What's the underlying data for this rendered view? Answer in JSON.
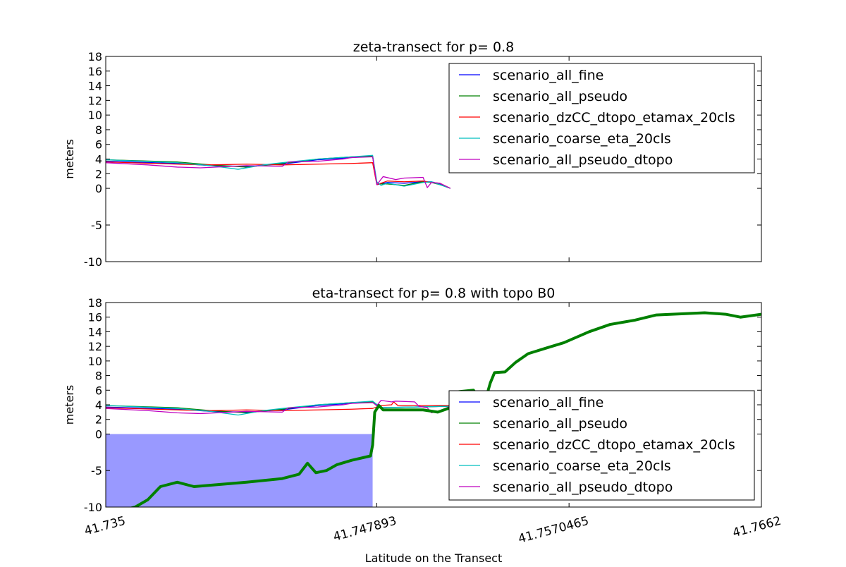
{
  "chart_data": [
    {
      "type": "line",
      "title": "zeta-transect for p= 0.8",
      "xlabel": "",
      "ylabel": "meters",
      "xlim": [
        41.735,
        41.7662
      ],
      "ylim": [
        -10,
        18
      ],
      "yticks": [
        "-10",
        "-5",
        "0",
        "2",
        "4",
        "6",
        "8",
        "10",
        "12",
        "14",
        "16",
        "18"
      ],
      "legend_placement": "top-right",
      "series": [
        {
          "name": "scenario_all_fine",
          "color": "#0000ff",
          "points": [
            [
              41.735,
              3.7
            ],
            [
              41.7384,
              3.4
            ],
            [
              41.74,
              3.1
            ],
            [
              41.7417,
              3.0
            ],
            [
              41.7434,
              3.3
            ],
            [
              41.7451,
              3.9
            ],
            [
              41.7467,
              4.2
            ],
            [
              41.7477,
              4.4
            ],
            [
              41.7479,
              0.5
            ],
            [
              41.7484,
              0.8
            ],
            [
              41.7492,
              0.7
            ],
            [
              41.7501,
              0.9
            ],
            [
              41.7505,
              0.9
            ],
            [
              41.7509,
              0.6
            ],
            [
              41.7514,
              0.0
            ]
          ]
        },
        {
          "name": "scenario_all_pseudo",
          "color": "#008000",
          "points": [
            [
              41.735,
              3.9
            ],
            [
              41.7384,
              3.6
            ],
            [
              41.74,
              3.2
            ],
            [
              41.7417,
              2.9
            ],
            [
              41.7434,
              3.4
            ],
            [
              41.7451,
              4.0
            ],
            [
              41.7467,
              4.3
            ],
            [
              41.7477,
              4.4
            ],
            [
              41.7479,
              0.6
            ],
            [
              41.7484,
              0.6
            ],
            [
              41.7492,
              0.4
            ],
            [
              41.7501,
              0.9
            ],
            [
              41.7505,
              0.8
            ],
            [
              41.7509,
              0.5
            ],
            [
              41.7514,
              0.0
            ]
          ]
        },
        {
          "name": "scenario_dzCC_dtopo_etamax_20cls",
          "color": "#ff0000",
          "points": [
            [
              41.735,
              3.6
            ],
            [
              41.7384,
              3.3
            ],
            [
              41.74,
              3.2
            ],
            [
              41.7417,
              3.3
            ],
            [
              41.7434,
              3.2
            ],
            [
              41.7451,
              3.3
            ],
            [
              41.7467,
              3.4
            ],
            [
              41.7477,
              3.5
            ],
            [
              41.7479,
              0.5
            ],
            [
              41.7484,
              1.0
            ],
            [
              41.7492,
              0.9
            ],
            [
              41.7501,
              1.0
            ],
            [
              41.7505,
              0.8
            ],
            [
              41.7509,
              0.7
            ],
            [
              41.7514,
              0.0
            ]
          ]
        },
        {
          "name": "scenario_coarse_eta_20cls",
          "color": "#00bfbf",
          "points": [
            [
              41.735,
              3.9
            ],
            [
              41.7384,
              3.5
            ],
            [
              41.74,
              3.1
            ],
            [
              41.7413,
              2.6
            ],
            [
              41.7425,
              3.2
            ],
            [
              41.7434,
              3.5
            ],
            [
              41.7451,
              4.0
            ],
            [
              41.7467,
              4.3
            ],
            [
              41.7477,
              4.5
            ],
            [
              41.7479,
              0.9
            ],
            [
              41.7481,
              0.4
            ],
            [
              41.7484,
              0.7
            ],
            [
              41.7492,
              0.3
            ],
            [
              41.7501,
              0.8
            ],
            [
              41.7505,
              0.9
            ],
            [
              41.7509,
              0.5
            ],
            [
              41.7514,
              0.0
            ]
          ]
        },
        {
          "name": "scenario_all_pseudo_dtopo",
          "color": "#bf00bf",
          "points": [
            [
              41.735,
              3.5
            ],
            [
              41.737,
              3.2
            ],
            [
              41.7384,
              2.9
            ],
            [
              41.7395,
              2.8
            ],
            [
              41.7417,
              3.1
            ],
            [
              41.7434,
              3.0
            ],
            [
              41.7437,
              3.6
            ],
            [
              41.7451,
              3.7
            ],
            [
              41.7463,
              4.0
            ],
            [
              41.7467,
              4.2
            ],
            [
              41.7477,
              4.3
            ],
            [
              41.7479,
              0.5
            ],
            [
              41.7482,
              1.6
            ],
            [
              41.7488,
              1.2
            ],
            [
              41.7492,
              1.4
            ],
            [
              41.7501,
              1.5
            ],
            [
              41.7503,
              0.1
            ],
            [
              41.7505,
              0.8
            ],
            [
              41.7509,
              0.7
            ],
            [
              41.7514,
              0.0
            ]
          ]
        }
      ]
    },
    {
      "type": "line",
      "title": "eta-transect for p= 0.8 with topo B0",
      "xlabel": "Latitude on the Transect",
      "ylabel": "meters",
      "xlim": [
        41.735,
        41.7662
      ],
      "ylim": [
        -10,
        18
      ],
      "xticks": [
        "41.735",
        "41.747893",
        "41.7570465",
        "41.7662"
      ],
      "xtick_values": [
        41.735,
        41.747893,
        41.7570465,
        41.7662
      ],
      "yticks": [
        "-10",
        "-5",
        "0",
        "2",
        "4",
        "6",
        "8",
        "10",
        "12",
        "14",
        "16",
        "18"
      ],
      "legend_placement": "lower-right",
      "water_fill": {
        "color": "#9999ff",
        "x_range": [
          41.735,
          41.7477
        ],
        "y_range": [
          -10,
          0
        ]
      },
      "topo": {
        "name": "topo B0",
        "color": "#008000",
        "points": [
          [
            41.735,
            -11
          ],
          [
            41.7364,
            -10
          ],
          [
            41.737,
            -9
          ],
          [
            41.7376,
            -7.2
          ],
          [
            41.7384,
            -6.6
          ],
          [
            41.7392,
            -7.2
          ],
          [
            41.7417,
            -6.6
          ],
          [
            41.7434,
            -6.1
          ],
          [
            41.7442,
            -5.5
          ],
          [
            41.7446,
            -4.0
          ],
          [
            41.745,
            -5.3
          ],
          [
            41.7455,
            -5.0
          ],
          [
            41.746,
            -4.2
          ],
          [
            41.7467,
            -3.6
          ],
          [
            41.7476,
            -3.0
          ],
          [
            41.7477,
            -1.5
          ],
          [
            41.7478,
            3.0
          ],
          [
            41.748,
            3.9
          ],
          [
            41.7482,
            3.3
          ],
          [
            41.7501,
            3.3
          ],
          [
            41.7508,
            3.0
          ],
          [
            41.7514,
            3.6
          ],
          [
            41.7518,
            5.8
          ],
          [
            41.7525,
            6.0
          ],
          [
            41.753,
            4.0
          ],
          [
            41.7533,
            7.0
          ],
          [
            41.7535,
            8.4
          ],
          [
            41.754,
            8.5
          ],
          [
            41.7545,
            9.8
          ],
          [
            41.7551,
            11.0
          ],
          [
            41.756,
            11.8
          ],
          [
            41.7568,
            12.5
          ],
          [
            41.758,
            14.0
          ],
          [
            41.759,
            15.0
          ],
          [
            41.7602,
            15.6
          ],
          [
            41.7612,
            16.3
          ],
          [
            41.7635,
            16.6
          ],
          [
            41.7645,
            16.4
          ],
          [
            41.7652,
            16.0
          ],
          [
            41.7662,
            16.4
          ]
        ]
      },
      "series": [
        {
          "name": "scenario_all_fine",
          "color": "#0000ff",
          "points": [
            [
              41.735,
              3.7
            ],
            [
              41.7384,
              3.4
            ],
            [
              41.74,
              3.1
            ],
            [
              41.7417,
              3.0
            ],
            [
              41.7434,
              3.3
            ],
            [
              41.7451,
              3.9
            ],
            [
              41.7467,
              4.2
            ],
            [
              41.7477,
              4.4
            ],
            [
              41.748,
              3.6
            ],
            [
              41.7514,
              3.8
            ]
          ]
        },
        {
          "name": "scenario_all_pseudo",
          "color": "#008000",
          "points": [
            [
              41.735,
              3.9
            ],
            [
              41.7384,
              3.6
            ],
            [
              41.74,
              3.2
            ],
            [
              41.7417,
              2.9
            ],
            [
              41.7434,
              3.4
            ],
            [
              41.7451,
              4.0
            ],
            [
              41.7467,
              4.3
            ],
            [
              41.7477,
              4.4
            ],
            [
              41.748,
              3.6
            ],
            [
              41.7514,
              3.8
            ]
          ]
        },
        {
          "name": "scenario_dzCC_dtopo_etamax_20cls",
          "color": "#ff0000",
          "points": [
            [
              41.735,
              3.6
            ],
            [
              41.7384,
              3.3
            ],
            [
              41.74,
              3.2
            ],
            [
              41.7417,
              3.3
            ],
            [
              41.7434,
              3.2
            ],
            [
              41.7451,
              3.3
            ],
            [
              41.7467,
              3.4
            ],
            [
              41.7477,
              3.5
            ],
            [
              41.7481,
              3.9
            ],
            [
              41.7486,
              4.0
            ],
            [
              41.7487,
              4.4
            ],
            [
              41.7489,
              3.9
            ],
            [
              41.7514,
              3.9
            ]
          ]
        },
        {
          "name": "scenario_coarse_eta_20cls",
          "color": "#00bfbf",
          "points": [
            [
              41.735,
              3.9
            ],
            [
              41.7384,
              3.5
            ],
            [
              41.74,
              3.1
            ],
            [
              41.7413,
              2.6
            ],
            [
              41.7425,
              3.2
            ],
            [
              41.7434,
              3.5
            ],
            [
              41.7451,
              4.0
            ],
            [
              41.7467,
              4.3
            ],
            [
              41.7477,
              4.5
            ],
            [
              41.7481,
              3.6
            ],
            [
              41.7514,
              3.8
            ]
          ]
        },
        {
          "name": "scenario_all_pseudo_dtopo",
          "color": "#bf00bf",
          "points": [
            [
              41.735,
              3.5
            ],
            [
              41.737,
              3.2
            ],
            [
              41.7384,
              2.9
            ],
            [
              41.7395,
              2.8
            ],
            [
              41.7417,
              3.1
            ],
            [
              41.7434,
              3.0
            ],
            [
              41.7437,
              3.6
            ],
            [
              41.7451,
              3.7
            ],
            [
              41.7463,
              4.0
            ],
            [
              41.7467,
              4.2
            ],
            [
              41.7477,
              4.3
            ],
            [
              41.7479,
              3.9
            ],
            [
              41.7481,
              4.6
            ],
            [
              41.7486,
              4.4
            ],
            [
              41.7488,
              4.5
            ],
            [
              41.7497,
              4.4
            ],
            [
              41.7499,
              3.8
            ],
            [
              41.7503,
              3.6
            ],
            [
              41.7505,
              2.9
            ],
            [
              41.7509,
              3.2
            ],
            [
              41.7514,
              3.8
            ]
          ]
        }
      ]
    }
  ]
}
